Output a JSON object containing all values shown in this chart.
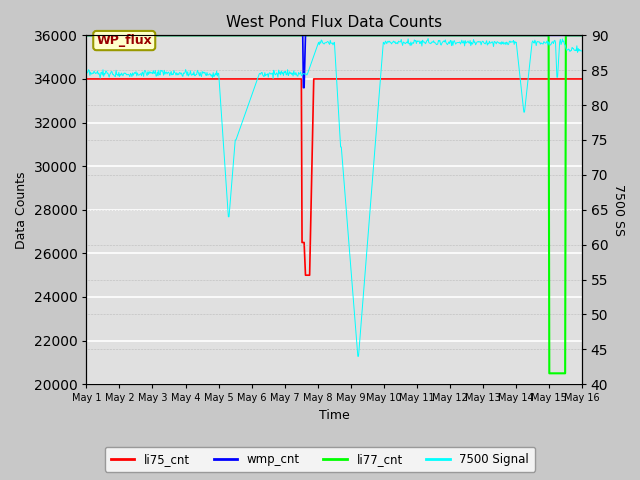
{
  "title": "West Pond Flux Data Counts",
  "xlabel": "Time",
  "ylabel_left": "Data Counts",
  "ylabel_right": "7500 SS",
  "ylim_left": [
    20000,
    36000
  ],
  "ylim_right": [
    40,
    90
  ],
  "yticks_left": [
    20000,
    22000,
    24000,
    26000,
    28000,
    30000,
    32000,
    34000,
    36000
  ],
  "yticks_right": [
    40,
    45,
    50,
    55,
    60,
    65,
    70,
    75,
    80,
    85,
    90
  ],
  "fig_bg_color": "#c8c8c8",
  "plot_bg_color": "#e0e0e0",
  "grid_color": "#ffffff",
  "annotation_box_text": "WP_flux",
  "annotation_box_fc": "#ffffcc",
  "annotation_box_ec": "#999900",
  "annotation_text_color": "#990000",
  "legend_labels": [
    "li75_cnt",
    "wmp_cnt",
    "li77_cnt",
    "7500 Signal"
  ],
  "legend_colors": [
    "red",
    "blue",
    "#00ff00",
    "cyan"
  ]
}
